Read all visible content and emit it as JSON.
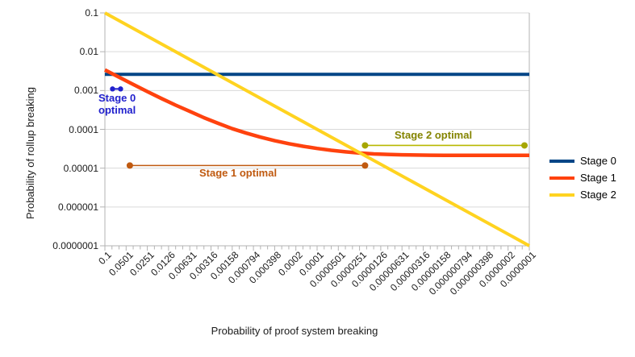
{
  "chart_data": {
    "type": "line",
    "title": "",
    "xlabel": "Probability of proof system breaking",
    "ylabel": "Probability of rollup breaking",
    "x_scale": "log",
    "y_scale": "log",
    "xlim": [
      0.1,
      1e-07
    ],
    "ylim": [
      0.1,
      1e-07
    ],
    "grid": "horizontal",
    "legend_position": "right",
    "x_tick_labels": [
      "0.1",
      "0.0501",
      "0.0251",
      "0.0126",
      "0.00631",
      "0.00316",
      "0.00158",
      "0.000794",
      "0.000398",
      "0.0002",
      "0.0001",
      "0.0000501",
      "0.0000251",
      "0.0000126",
      "0.00000631",
      "0.00000316",
      "0.00000158",
      "0.000000794",
      "0.000000398",
      "0.0000002",
      "0.0000001"
    ],
    "y_tick_labels": [
      "0.1",
      "0.01",
      "0.001",
      "0.0001",
      "0.00001",
      "0.000001",
      "0.0000001"
    ],
    "series": [
      {
        "name": "Stage 0",
        "color": "#004586",
        "points": [
          [
            0.1,
            0.0026
          ],
          [
            1e-07,
            0.0026
          ]
        ]
      },
      {
        "name": "Stage 1",
        "color": "#ff420e",
        "points": [
          [
            0.1,
            0.0034
          ],
          [
            0.0631,
            0.0022
          ],
          [
            0.0398,
            0.00144
          ],
          [
            0.0251,
            0.00094
          ],
          [
            0.0158,
            0.00062
          ],
          [
            0.01,
            0.00042
          ],
          [
            0.00631,
            0.00029
          ],
          [
            0.00398,
            0.0002
          ],
          [
            0.00251,
            0.000143
          ],
          [
            0.00158,
            0.000104
          ],
          [
            0.001,
            8e-05
          ],
          [
            0.000631,
            6.3e-05
          ],
          [
            0.000398,
            5.1e-05
          ],
          [
            0.000251,
            4.27e-05
          ],
          [
            0.000158,
            3.67e-05
          ],
          [
            0.0001,
            3.22e-05
          ],
          [
            6.31e-05,
            2.88e-05
          ],
          [
            3.98e-05,
            2.63e-05
          ],
          [
            2.51e-05,
            2.45e-05
          ],
          [
            1.58e-05,
            2.33e-05
          ],
          [
            1e-05,
            2.26e-05
          ],
          [
            6.31e-06,
            2.21e-05
          ],
          [
            3.98e-06,
            2.18e-05
          ],
          [
            2.51e-06,
            2.16e-05
          ],
          [
            1.58e-06,
            2.15e-05
          ],
          [
            1e-06,
            2.14e-05
          ],
          [
            1e-07,
            2.13e-05
          ]
        ]
      },
      {
        "name": "Stage 2",
        "color": "#ffd320",
        "points": [
          [
            0.1,
            0.1
          ],
          [
            1e-07,
            1e-07
          ]
        ]
      }
    ],
    "annotations": [
      {
        "name": "Stage 0 optimal",
        "label_lines": [
          "Stage 0",
          "optimal"
        ],
        "color": "#2121cd",
        "dot_color": "#2121cd",
        "label_color": "#2121cd",
        "y": 0.0011,
        "x_start": 0.078,
        "x_end": 0.06,
        "dot_radius": 3.2
      },
      {
        "name": "Stage 1 optimal",
        "label_lines": [
          "Stage 1 optimal"
        ],
        "color": "#c05a10",
        "dot_color": "#c05a10",
        "label_color": "#c05a10",
        "y": 1.17e-05,
        "x_start": 0.0444,
        "x_end": 2.1e-05,
        "dot_radius": 4
      },
      {
        "name": "Stage 2 optimal",
        "label_lines": [
          "Stage 2 optimal"
        ],
        "color": "#b8b800",
        "dot_color": "#a6a600",
        "label_color": "#848400",
        "y": 3.85e-05,
        "x_start": 2.1e-05,
        "x_end": 1.17e-07,
        "dot_radius": 4
      }
    ]
  }
}
